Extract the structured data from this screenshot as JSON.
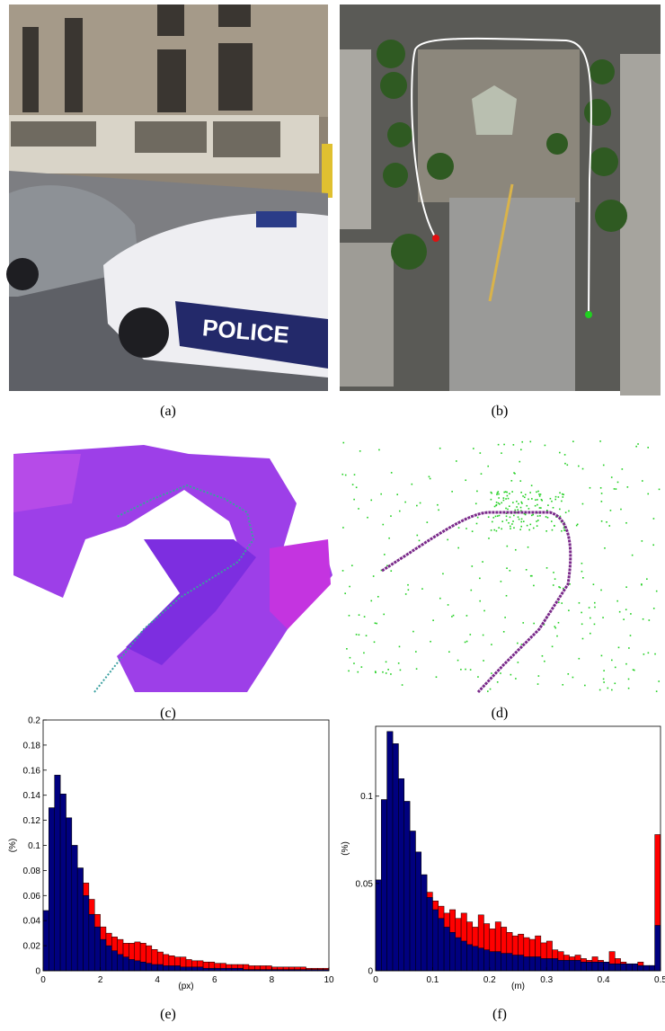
{
  "captions": [
    "(a)",
    "(b)",
    "(c)",
    "(d)",
    "(e)",
    "(f)"
  ],
  "chart_data": [
    {
      "type": "histogram",
      "xlabel": "(px)",
      "ylabel": "(%)",
      "bins": [
        0,
        0.2,
        0.4,
        0.6,
        0.8,
        1,
        1.2,
        1.4,
        1.6,
        1.8,
        2,
        2.2,
        2.4,
        2.6,
        2.8,
        3,
        3.2,
        3.4,
        3.6,
        3.8,
        4,
        4.2,
        4.4,
        4.6,
        4.8,
        5,
        5.2,
        5.4,
        5.6,
        5.8,
        6,
        6.2,
        6.4,
        6.6,
        6.8,
        7,
        7.2,
        7.4,
        7.6,
        7.8,
        8,
        8.2,
        8.4,
        8.6,
        8.8,
        9,
        9.2,
        9.4,
        9.6,
        9.8,
        10
      ],
      "series": [
        {
          "color": "#ff0000",
          "values": [
            0.048,
            0.13,
            0.156,
            0.141,
            0.122,
            0.1,
            0.082,
            0.07,
            0.057,
            0.045,
            0.035,
            0.03,
            0.027,
            0.025,
            0.022,
            0.022,
            0.023,
            0.022,
            0.02,
            0.017,
            0.015,
            0.013,
            0.012,
            0.011,
            0.011,
            0.009,
            0.008,
            0.008,
            0.007,
            0.007,
            0.006,
            0.006,
            0.005,
            0.005,
            0.005,
            0.005,
            0.004,
            0.004,
            0.004,
            0.004,
            0.003,
            0.003,
            0.003,
            0.003,
            0.003,
            0.003,
            0.002,
            0.002,
            0.002,
            0.002
          ]
        },
        {
          "color": "#00007f",
          "values": [
            0.048,
            0.13,
            0.156,
            0.141,
            0.122,
            0.1,
            0.082,
            0.06,
            0.045,
            0.035,
            0.025,
            0.02,
            0.016,
            0.013,
            0.011,
            0.009,
            0.008,
            0.007,
            0.006,
            0.005,
            0.005,
            0.004,
            0.004,
            0.004,
            0.003,
            0.003,
            0.003,
            0.003,
            0.002,
            0.002,
            0.002,
            0.002,
            0.002,
            0.002,
            0.002,
            0.001,
            0.001,
            0.001,
            0.001,
            0.001,
            0.001,
            0.001,
            0.001,
            0.001,
            0.001,
            0.001,
            0.001,
            0.001,
            0.001,
            0.001
          ]
        }
      ],
      "xlim": [
        0,
        10
      ],
      "xticks": [
        0,
        2,
        4,
        6,
        8,
        10
      ],
      "ylim": [
        0,
        0.2
      ],
      "yticks": [
        0,
        0.02,
        0.04,
        0.06,
        0.08,
        0.1,
        0.12,
        0.14,
        0.16,
        0.18,
        0.2
      ]
    },
    {
      "type": "histogram",
      "xlabel": "(m)",
      "ylabel": "(%)",
      "bins": [
        0,
        0.01,
        0.02,
        0.03,
        0.04,
        0.05,
        0.06,
        0.07,
        0.08,
        0.09,
        0.1,
        0.11,
        0.12,
        0.13,
        0.14,
        0.15,
        0.16,
        0.17,
        0.18,
        0.19,
        0.2,
        0.21,
        0.22,
        0.23,
        0.24,
        0.25,
        0.26,
        0.27,
        0.28,
        0.29,
        0.3,
        0.31,
        0.32,
        0.33,
        0.34,
        0.35,
        0.36,
        0.37,
        0.38,
        0.39,
        0.4,
        0.41,
        0.42,
        0.43,
        0.44,
        0.45,
        0.46,
        0.47,
        0.48,
        0.49,
        0.5
      ],
      "series": [
        {
          "color": "#ff0000",
          "values": [
            0.052,
            0.098,
            0.137,
            0.13,
            0.11,
            0.097,
            0.08,
            0.068,
            0.055,
            0.045,
            0.04,
            0.037,
            0.033,
            0.035,
            0.03,
            0.033,
            0.028,
            0.025,
            0.032,
            0.027,
            0.024,
            0.028,
            0.025,
            0.022,
            0.02,
            0.021,
            0.019,
            0.018,
            0.02,
            0.016,
            0.017,
            0.012,
            0.011,
            0.009,
            0.008,
            0.009,
            0.007,
            0.006,
            0.008,
            0.006,
            0.005,
            0.011,
            0.007,
            0.005,
            0.004,
            0.004,
            0.005,
            0.003,
            0.003,
            0.078
          ]
        },
        {
          "color": "#00007f",
          "values": [
            0.052,
            0.098,
            0.137,
            0.13,
            0.11,
            0.097,
            0.08,
            0.068,
            0.055,
            0.042,
            0.035,
            0.03,
            0.025,
            0.022,
            0.019,
            0.017,
            0.015,
            0.014,
            0.013,
            0.012,
            0.011,
            0.011,
            0.01,
            0.01,
            0.009,
            0.009,
            0.008,
            0.008,
            0.008,
            0.007,
            0.007,
            0.007,
            0.006,
            0.006,
            0.006,
            0.006,
            0.005,
            0.005,
            0.005,
            0.005,
            0.005,
            0.004,
            0.004,
            0.004,
            0.004,
            0.004,
            0.003,
            0.003,
            0.003,
            0.026
          ]
        }
      ],
      "xlim": [
        0,
        0.5
      ],
      "xticks": [
        0,
        0.1,
        0.2,
        0.3,
        0.4,
        0.5
      ],
      "ylim": [
        0,
        0.14
      ],
      "yticks": [
        0,
        0.05,
        0.1
      ]
    }
  ]
}
